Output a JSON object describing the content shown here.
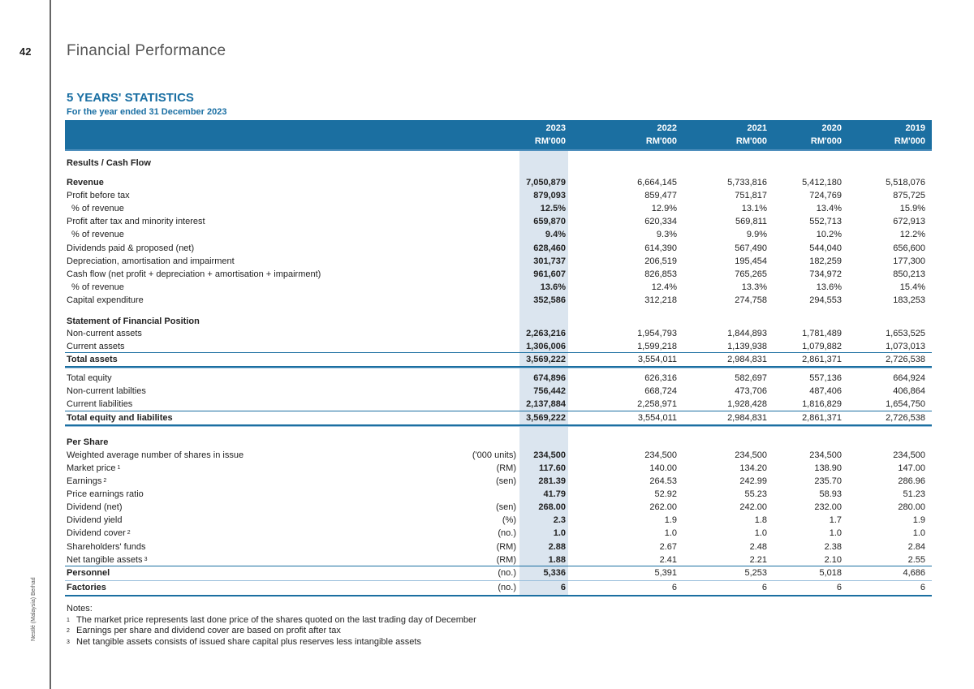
{
  "page": {
    "number": "42",
    "section": "Financial Performance",
    "company": "Nestlé (Malaysia) Berhad"
  },
  "title": "5 YEARS' STATISTICS",
  "subtitle": "For the year ended 31 December 2023",
  "colors": {
    "header": "#1b6fa1",
    "highlight": "#dbe5ef",
    "title": "#1a6fa3"
  },
  "columns": [
    {
      "year": "2023",
      "unit": "RM'000"
    },
    {
      "year": "2022",
      "unit": "RM'000"
    },
    {
      "year": "2021",
      "unit": "RM'000"
    },
    {
      "year": "2020",
      "unit": "RM'000"
    },
    {
      "year": "2019",
      "unit": "RM'000"
    }
  ],
  "rows": [
    {
      "label": "Results / Cash Flow",
      "heading": true
    },
    {
      "label": "Revenue",
      "bold": true,
      "values": [
        "7,050,879",
        "6,664,145",
        "5,733,816",
        "5,412,180",
        "5,518,076"
      ]
    },
    {
      "label": "Profit before tax",
      "values": [
        "879,093",
        "859,477",
        "751,817",
        "724,769",
        "875,725"
      ]
    },
    {
      "label": "% of revenue",
      "indent": true,
      "values": [
        "12.5%",
        "12.9%",
        "13.1%",
        "13.4%",
        "15.9%"
      ]
    },
    {
      "label": "Profit after tax and minority interest",
      "values": [
        "659,870",
        "620,334",
        "569,811",
        "552,713",
        "672,913"
      ]
    },
    {
      "label": "% of revenue",
      "indent": true,
      "values": [
        "9.4%",
        "9.3%",
        "9.9%",
        "10.2%",
        "12.2%"
      ]
    },
    {
      "label": "Dividends paid & proposed (net)",
      "values": [
        "628,460",
        "614,390",
        "567,490",
        "544,040",
        "656,600"
      ]
    },
    {
      "label": "Depreciation, amortisation and impairment",
      "values": [
        "301,737",
        "206,519",
        "195,454",
        "182,259",
        "177,300"
      ]
    },
    {
      "label": "Cash flow (net profit + depreciation + amortisation + impairment)",
      "values": [
        "961,607",
        "826,853",
        "765,265",
        "734,972",
        "850,213"
      ]
    },
    {
      "label": "% of revenue",
      "indent": true,
      "values": [
        "13.6%",
        "12.4%",
        "13.3%",
        "13.6%",
        "15.4%"
      ]
    },
    {
      "label": "Capital expenditure",
      "values": [
        "352,586",
        "312,218",
        "274,758",
        "294,553",
        "183,253"
      ]
    },
    {
      "label": "Statement of Financial Position",
      "heading": true
    },
    {
      "label": "Non-current assets",
      "values": [
        "2,263,216",
        "1,954,793",
        "1,844,893",
        "1,781,489",
        "1,653,525"
      ]
    },
    {
      "label": "Current assets",
      "values": [
        "1,306,006",
        "1,599,218",
        "1,139,938",
        "1,079,882",
        "1,073,013"
      ]
    },
    {
      "label": "Total assets",
      "bold": true,
      "values": [
        "3,569,222",
        "3,554,011",
        "2,984,831",
        "2,861,371",
        "2,726,538"
      ]
    },
    {
      "label": "Total equity",
      "values": [
        "674,896",
        "626,316",
        "582,697",
        "557,136",
        "664,924"
      ]
    },
    {
      "label": "Non-current labilties",
      "values": [
        "756,442",
        "668,724",
        "473,706",
        "487,406",
        "406,864"
      ]
    },
    {
      "label": "Current liabilities",
      "values": [
        "2,137,884",
        "2,258,971",
        "1,928,428",
        "1,816,829",
        "1,654,750"
      ]
    },
    {
      "label": "Total equity and liabilites",
      "bold": true,
      "values": [
        "3,569,222",
        "3,554,011",
        "2,984,831",
        "2,861,371",
        "2,726,538"
      ]
    },
    {
      "label": "Per Share",
      "heading": true
    },
    {
      "label": "Weighted average number of shares in issue",
      "unit": "('000 units)",
      "values": [
        "234,500",
        "234,500",
        "234,500",
        "234,500",
        "234,500"
      ]
    },
    {
      "label": "Market price",
      "ref": "1",
      "unit": "(RM)",
      "values": [
        "117.60",
        "140.00",
        "134.20",
        "138.90",
        "147.00"
      ]
    },
    {
      "label": "Earnings",
      "ref": "2",
      "unit": "(sen)",
      "values": [
        "281.39",
        "264.53",
        "242.99",
        "235.70",
        "286.96"
      ]
    },
    {
      "label": "Price earnings ratio",
      "values": [
        "41.79",
        "52.92",
        "55.23",
        "58.93",
        "51.23"
      ]
    },
    {
      "label": "Dividend (net)",
      "unit": "(sen)",
      "values": [
        "268.00",
        "262.00",
        "242.00",
        "232.00",
        "280.00"
      ]
    },
    {
      "label": "Dividend yield",
      "unit": "(%)",
      "values": [
        "2.3",
        "1.9",
        "1.8",
        "1.7",
        "1.9"
      ]
    },
    {
      "label": "Dividend cover",
      "ref": "2",
      "unit": "(no.)",
      "values": [
        "1.0",
        "1.0",
        "1.0",
        "1.0",
        "1.0"
      ]
    },
    {
      "label": "Shareholders' funds",
      "unit": "(RM)",
      "values": [
        "2.88",
        "2.67",
        "2.48",
        "2.38",
        "2.84"
      ]
    },
    {
      "label": "Net tangible assets",
      "ref": "3",
      "unit": "(RM)",
      "values": [
        "1.88",
        "2.41",
        "2.21",
        "2.10",
        "2.55"
      ]
    },
    {
      "label": "Personnel",
      "bold": true,
      "unit": "(no.)",
      "values": [
        "5,336",
        "5,391",
        "5,253",
        "5,018",
        "4,686"
      ]
    },
    {
      "label": "Factories",
      "bold": true,
      "unit": "(no.)",
      "values": [
        "6",
        "6",
        "6",
        "6",
        "6"
      ]
    }
  ],
  "notes": {
    "heading": "Notes:",
    "items": [
      {
        "ref": "1",
        "text": "The market price represents last done price of the shares quoted on the last trading day of December"
      },
      {
        "ref": "2",
        "text": "Earnings per share and dividend cover are based on profit after tax"
      },
      {
        "ref": "3",
        "text": "Net tangible assets consists of issued share capital plus reserves less intangible assets"
      }
    ]
  }
}
